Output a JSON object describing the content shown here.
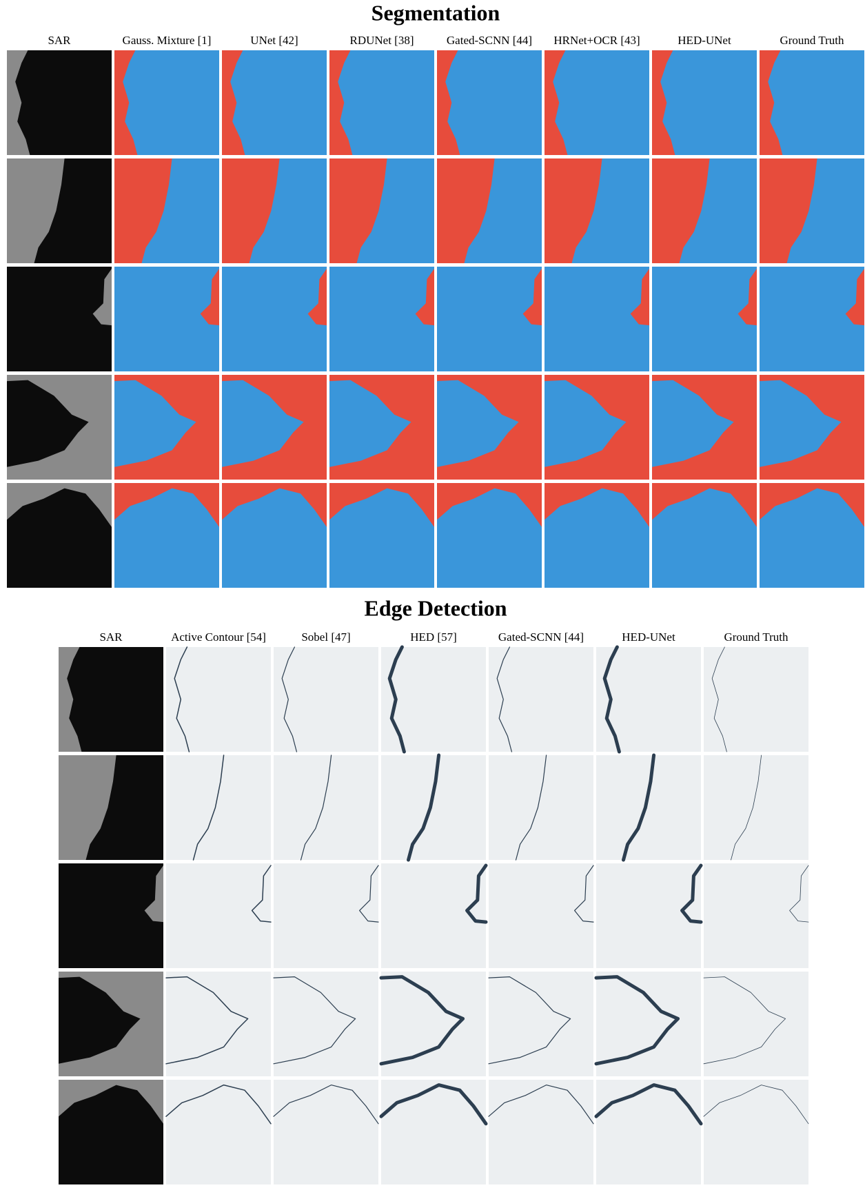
{
  "segmentation": {
    "title": "Segmentation",
    "columns": [
      "SAR",
      "Gauss. Mixture [1]",
      "UNet [42]",
      "RDUNet [38]",
      "Gated-SCNN [44]",
      "HRNet+OCR [43]",
      "HED-UNet",
      "Ground Truth"
    ]
  },
  "edge_detection": {
    "title": "Edge Detection",
    "columns": [
      "SAR",
      "Active Contour [54]",
      "Sobel [47]",
      "HED [57]",
      "Gated-SCNN [44]",
      "HED-UNet",
      "Ground Truth"
    ]
  }
}
